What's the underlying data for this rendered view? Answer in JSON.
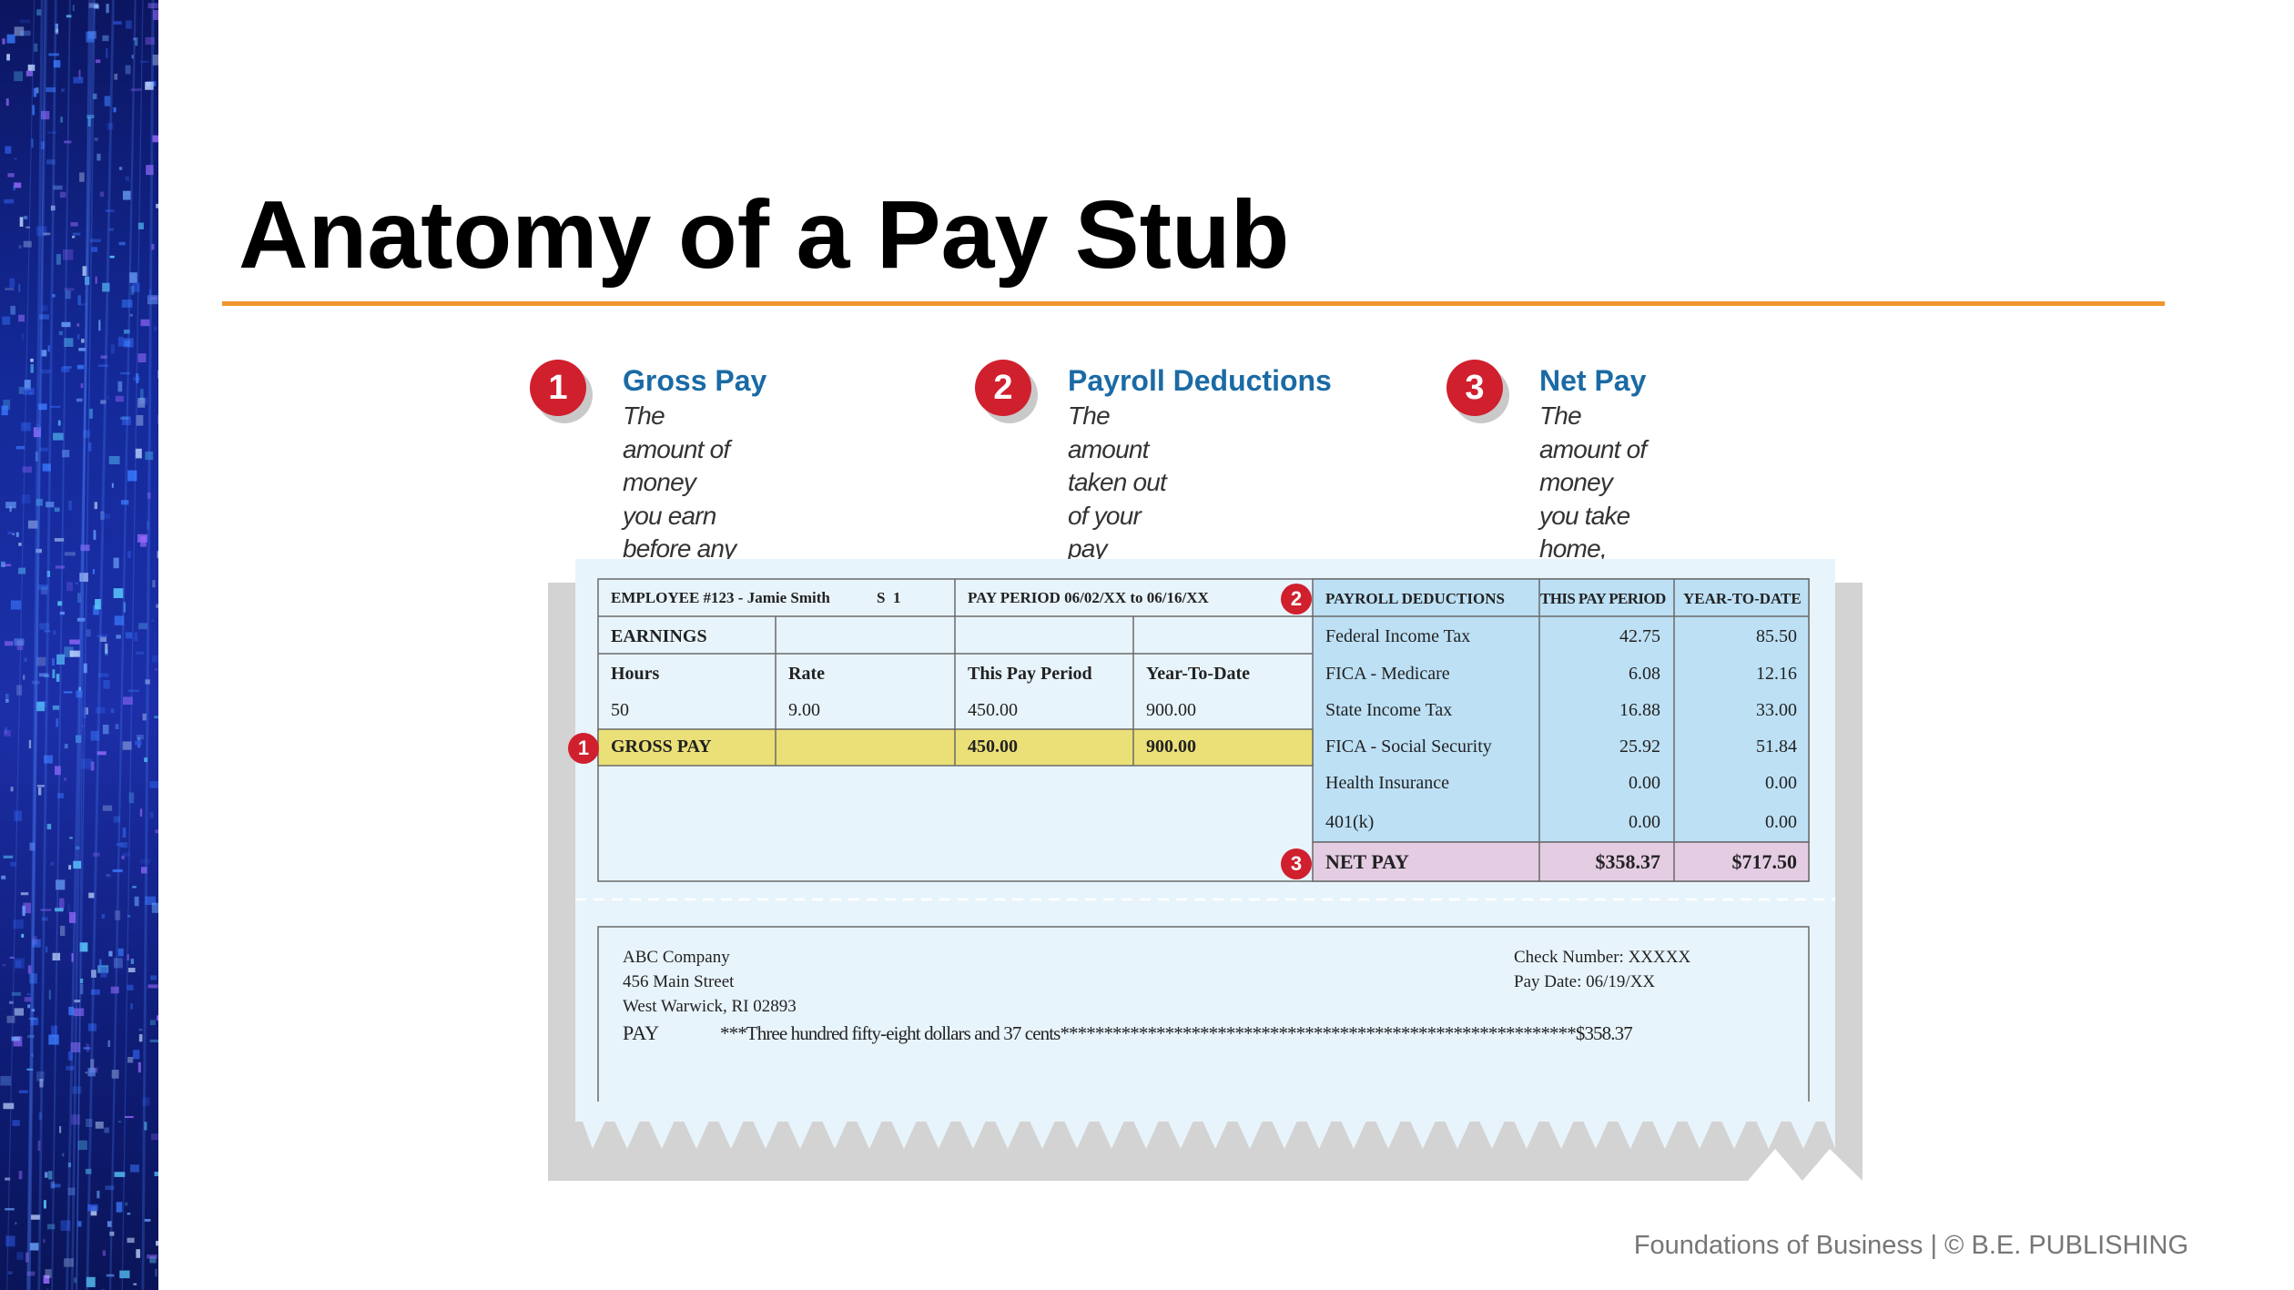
{
  "slide": {
    "title": "Anatomy of a Pay Stub",
    "footer": "Foundations of Business | © B.E. PUBLISHING"
  },
  "definitions": [
    {
      "number": "1",
      "title": "Gross Pay",
      "text": "The amount of money you earn\nbefore any payroll deductions"
    },
    {
      "number": "2",
      "title": "Payroll Deductions",
      "text": "The amount taken out of your pay\nfor taxes such as Federal Income\nTax, State Income Tax, Social\nSecurity tax, and Medicare tax"
    },
    {
      "number": "3",
      "title": "Net Pay",
      "text": "The amount of money you take\nhome, which is your gross pay\nminus any payroll deductions"
    }
  ],
  "stub": {
    "employee": "EMPLOYEE #123 - Jamie Smith",
    "status": "S  1",
    "pay_period": "PAY PERIOD 06/02/XX to 06/16/XX",
    "earnings_label": "EARNINGS",
    "earnings_headers": [
      "Hours",
      "Rate",
      "This Pay Period",
      "Year-To-Date"
    ],
    "earnings_row": [
      "50",
      "9.00",
      "450.00",
      "900.00"
    ],
    "gross_pay": {
      "label": "GROSS PAY",
      "this_period": "450.00",
      "ytd": "900.00",
      "marker": "1"
    },
    "deductions_headers": [
      "PAYROLL DEDUCTIONS",
      "THIS PAY PERIOD",
      "YEAR-TO-DATE"
    ],
    "deductions_marker": "2",
    "deductions": [
      {
        "name": "Federal Income Tax",
        "this_period": "42.75",
        "ytd": "85.50"
      },
      {
        "name": "FICA - Medicare",
        "this_period": "6.08",
        "ytd": "12.16"
      },
      {
        "name": "State Income Tax",
        "this_period": "16.88",
        "ytd": "33.00"
      },
      {
        "name": "FICA - Social Security",
        "this_period": "25.92",
        "ytd": "51.84"
      },
      {
        "name": "Health Insurance",
        "this_period": "0.00",
        "ytd": "0.00"
      },
      {
        "name": "401(k)",
        "this_period": "0.00",
        "ytd": "0.00"
      }
    ],
    "net_pay": {
      "label": "NET PAY",
      "this_period": "$358.37",
      "ytd": "$717.50",
      "marker": "3"
    },
    "check": {
      "company": "ABC Company",
      "street": "456 Main Street",
      "city": "West Warwick, RI 02893",
      "check_number": "Check Number: XXXXX",
      "pay_date": "Pay Date: 06/19/XX",
      "pay_label": "PAY",
      "pay_line": "***Three hundred fifty-eight dollars and 37 cents***********************************************************$358.37"
    }
  },
  "colors": {
    "accent_rule": "#f0962c",
    "badge_red": "#d0202d",
    "title_blue": "#1a6aa5",
    "stub_bg": "#e8f4fc",
    "gross_yellow": "#ebe077",
    "deduction_blue": "#bde0f5",
    "net_pink": "#e4cde3"
  }
}
